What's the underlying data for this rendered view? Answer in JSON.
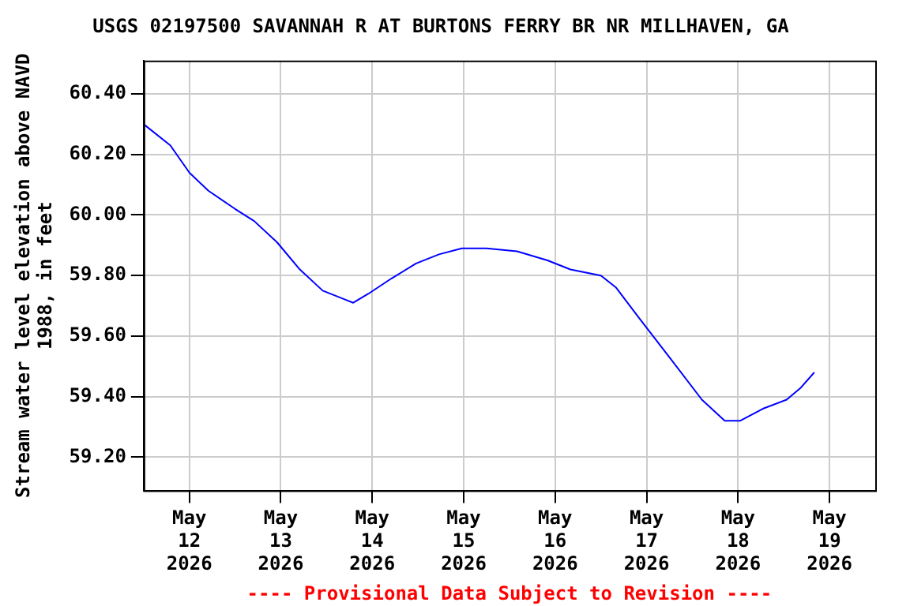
{
  "chart_data": {
    "type": "line",
    "title": "USGS 02197500 SAVANNAH R AT BURTONS FERRY BR NR MILLHAVEN, GA",
    "ylabel": "Stream water level elevation above NAVD 1988, in feet",
    "annotations": [
      "---- Provisional Data Subject to Revision ----"
    ],
    "x": [
      "2026-05-11T12:00",
      "2026-05-11T19:00",
      "2026-05-12T00:00",
      "2026-05-12T05:00",
      "2026-05-12T12:00",
      "2026-05-12T17:00",
      "2026-05-12T23:00",
      "2026-05-13T05:00",
      "2026-05-13T11:00",
      "2026-05-13T17:00",
      "2026-05-13T19:00",
      "2026-05-13T23:00",
      "2026-05-14T05:00",
      "2026-05-14T11:30",
      "2026-05-14T17:30",
      "2026-05-14T23:30",
      "2026-05-15T06:00",
      "2026-05-15T14:00",
      "2026-05-15T22:00",
      "2026-05-16T04:00",
      "2026-05-16T12:00",
      "2026-05-16T16:00",
      "2026-05-16T22:00",
      "2026-05-17T06:00",
      "2026-05-17T14:30",
      "2026-05-17T20:30",
      "2026-05-18T00:30",
      "2026-05-18T06:30",
      "2026-05-18T12:45",
      "2026-05-18T16:30",
      "2026-05-18T20:00"
    ],
    "series": [
      {
        "color": "#0000ff",
        "values": [
          60.3,
          60.23,
          60.14,
          60.08,
          60.02,
          59.98,
          59.91,
          59.82,
          59.75,
          59.72,
          59.71,
          59.74,
          59.79,
          59.84,
          59.87,
          59.89,
          59.89,
          59.88,
          59.85,
          59.82,
          59.8,
          59.76,
          59.66,
          59.53,
          59.39,
          59.32,
          59.32,
          59.36,
          59.39,
          59.43,
          59.48
        ]
      }
    ],
    "xlim": [
      "2026-05-11T12:00",
      "2026-05-19T12:00"
    ],
    "xticks": [
      {
        "value": "2026-05-12",
        "label": "May\n12\n2026"
      },
      {
        "value": "2026-05-13",
        "label": "May\n13\n2026"
      },
      {
        "value": "2026-05-14",
        "label": "May\n14\n2026"
      },
      {
        "value": "2026-05-15",
        "label": "May\n15\n2026"
      },
      {
        "value": "2026-05-16",
        "label": "May\n16\n2026"
      },
      {
        "value": "2026-05-17",
        "label": "May\n17\n2026"
      },
      {
        "value": "2026-05-18",
        "label": "May\n18\n2026"
      },
      {
        "value": "2026-05-19",
        "label": "May\n19\n2026"
      }
    ],
    "ylim": [
      59.09,
      60.51
    ],
    "yticks": [
      {
        "value": 59.2,
        "label": "59.20"
      },
      {
        "value": 59.4,
        "label": "59.40"
      },
      {
        "value": 59.6,
        "label": "59.60"
      },
      {
        "value": 59.8,
        "label": "59.80"
      },
      {
        "value": 60.0,
        "label": "60.00"
      },
      {
        "value": 60.2,
        "label": "60.20"
      },
      {
        "value": 60.4,
        "label": "60.40"
      }
    ],
    "grid": true,
    "legend": false,
    "marker": "none",
    "line_style": "solid"
  }
}
